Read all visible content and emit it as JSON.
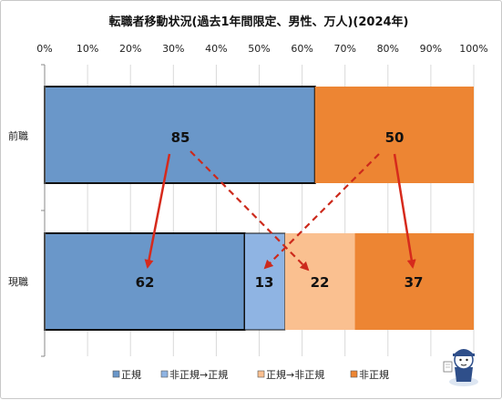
{
  "chart_data": {
    "type": "bar",
    "title": "転職者移動状況(過去1年間限定、男性、万人)(2024年)",
    "xlim": [
      0,
      100
    ],
    "x_ticks": [
      "0%",
      "10%",
      "20%",
      "30%",
      "40%",
      "50%",
      "60%",
      "70%",
      "80%",
      "90%",
      "100%"
    ],
    "grid": true,
    "legend_position": "bottom",
    "categories": [
      "前職",
      "現職"
    ],
    "series": [
      {
        "name": "正規",
        "color": "#6a97c9",
        "values": [
          63,
          46.6
        ]
      },
      {
        "name": "非正規→正規",
        "color": "#8fb4e3",
        "values": [
          0,
          9.4
        ]
      },
      {
        "name": "正規→非正規",
        "color": "#fac090",
        "values": [
          0,
          16.3
        ]
      },
      {
        "name": "非正規",
        "color": "#ed8533",
        "values": [
          37,
          27.7
        ]
      }
    ],
    "data_labels": {
      "before": [
        "85",
        "50"
      ],
      "after": [
        "62",
        "13",
        "22",
        "37"
      ]
    },
    "arrow_colors": {
      "main": "#d62a1c",
      "dashed": "#cc2a1c"
    }
  }
}
